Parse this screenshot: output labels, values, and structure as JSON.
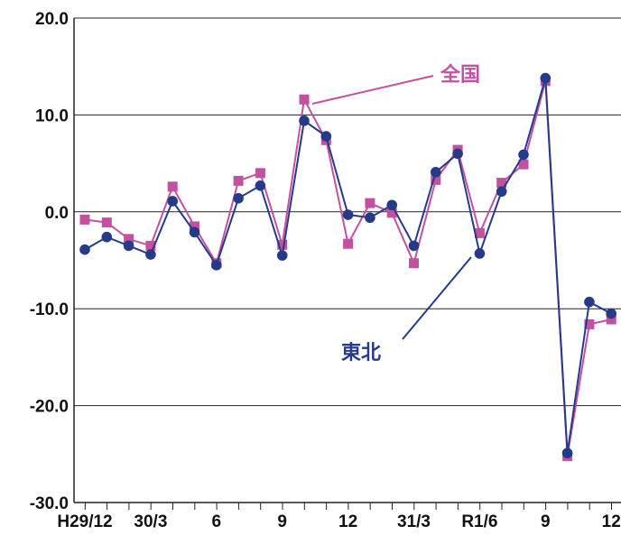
{
  "chart_data": {
    "type": "line",
    "title": "",
    "xlabel": "",
    "ylabel": "",
    "ylim": [
      -30,
      20
    ],
    "yticks": [
      "20.0",
      "10.0",
      "0.0",
      "-10.0",
      "-20.0",
      "-30.0"
    ],
    "ytick_values": [
      20,
      10,
      0,
      -10,
      -20,
      -30
    ],
    "grid": true,
    "x_tick_labels": [
      {
        "index": 0,
        "label": "H29/12"
      },
      {
        "index": 3,
        "label": "30/3"
      },
      {
        "index": 6,
        "label": "6"
      },
      {
        "index": 9,
        "label": "9"
      },
      {
        "index": 12,
        "label": "12"
      },
      {
        "index": 15,
        "label": "31/3"
      },
      {
        "index": 18,
        "label": "R1/6"
      },
      {
        "index": 21,
        "label": "9"
      },
      {
        "index": 24,
        "label": "12"
      }
    ],
    "series": [
      {
        "name": "全国",
        "color": "#c2529f",
        "marker": "square",
        "values": [
          -0.8,
          -1.1,
          -2.8,
          -3.5,
          2.6,
          -1.5,
          -5.3,
          3.2,
          4.0,
          -3.4,
          11.6,
          7.4,
          -3.3,
          0.9,
          -0.1,
          -5.3,
          3.3,
          6.4,
          -2.2,
          3.0,
          4.9,
          13.5,
          -25.2,
          -11.6,
          -11.1
        ]
      },
      {
        "name": "東北",
        "color": "#263a8a",
        "marker": "circle",
        "values": [
          -3.9,
          -2.6,
          -3.5,
          -4.4,
          1.1,
          -2.1,
          -5.5,
          1.4,
          2.7,
          -4.5,
          9.4,
          7.8,
          -0.3,
          -0.6,
          0.7,
          -3.5,
          4.1,
          6.0,
          -4.3,
          2.1,
          5.9,
          13.8,
          -24.9,
          -9.3,
          -10.5
        ]
      }
    ]
  }
}
